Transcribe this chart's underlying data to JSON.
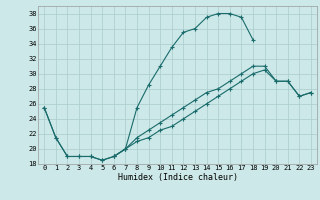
{
  "xlabel": "Humidex (Indice chaleur)",
  "bg_color": "#cce8e8",
  "grid_color": "#aacccc",
  "line_color": "#1a6b6b",
  "xlim": [
    -0.5,
    23.5
  ],
  "ylim": [
    18,
    39
  ],
  "yticks": [
    18,
    20,
    22,
    24,
    26,
    28,
    30,
    32,
    34,
    36,
    38
  ],
  "xticks": [
    0,
    1,
    2,
    3,
    4,
    5,
    6,
    7,
    8,
    9,
    10,
    11,
    12,
    13,
    14,
    15,
    16,
    17,
    18,
    19,
    20,
    21,
    22,
    23
  ],
  "line1_x": [
    0,
    1,
    2,
    3,
    4,
    5,
    6,
    7,
    8,
    9,
    10,
    11,
    12,
    13,
    14,
    15,
    16,
    17,
    18
  ],
  "line1_y": [
    25.5,
    21.5,
    19.0,
    19.0,
    19.0,
    18.5,
    19.0,
    20.0,
    25.5,
    28.5,
    31.0,
    33.5,
    35.5,
    36.0,
    37.5,
    38.0,
    38.0,
    37.5,
    34.5
  ],
  "line2_x": [
    0,
    1,
    2,
    3,
    4,
    5,
    6,
    7,
    8,
    9,
    10,
    11,
    12,
    13,
    14,
    15,
    16,
    17,
    18,
    19,
    20,
    21,
    22,
    23
  ],
  "line2_y": [
    25.5,
    21.5,
    19.0,
    19.0,
    19.0,
    18.5,
    19.0,
    20.0,
    21.0,
    21.5,
    22.5,
    23.0,
    24.0,
    25.0,
    26.0,
    27.0,
    28.0,
    29.0,
    30.0,
    30.5,
    29.0,
    29.0,
    27.0,
    27.5
  ],
  "line3_x": [
    6,
    7,
    8,
    9,
    10,
    11,
    12,
    13,
    14,
    15,
    16,
    17,
    18,
    19,
    20,
    21,
    22,
    23
  ],
  "line3_y": [
    19.0,
    20.0,
    21.5,
    22.5,
    23.5,
    24.5,
    25.5,
    26.5,
    27.5,
    28.0,
    29.0,
    30.0,
    31.0,
    31.0,
    29.0,
    29.0,
    27.0,
    27.5
  ]
}
